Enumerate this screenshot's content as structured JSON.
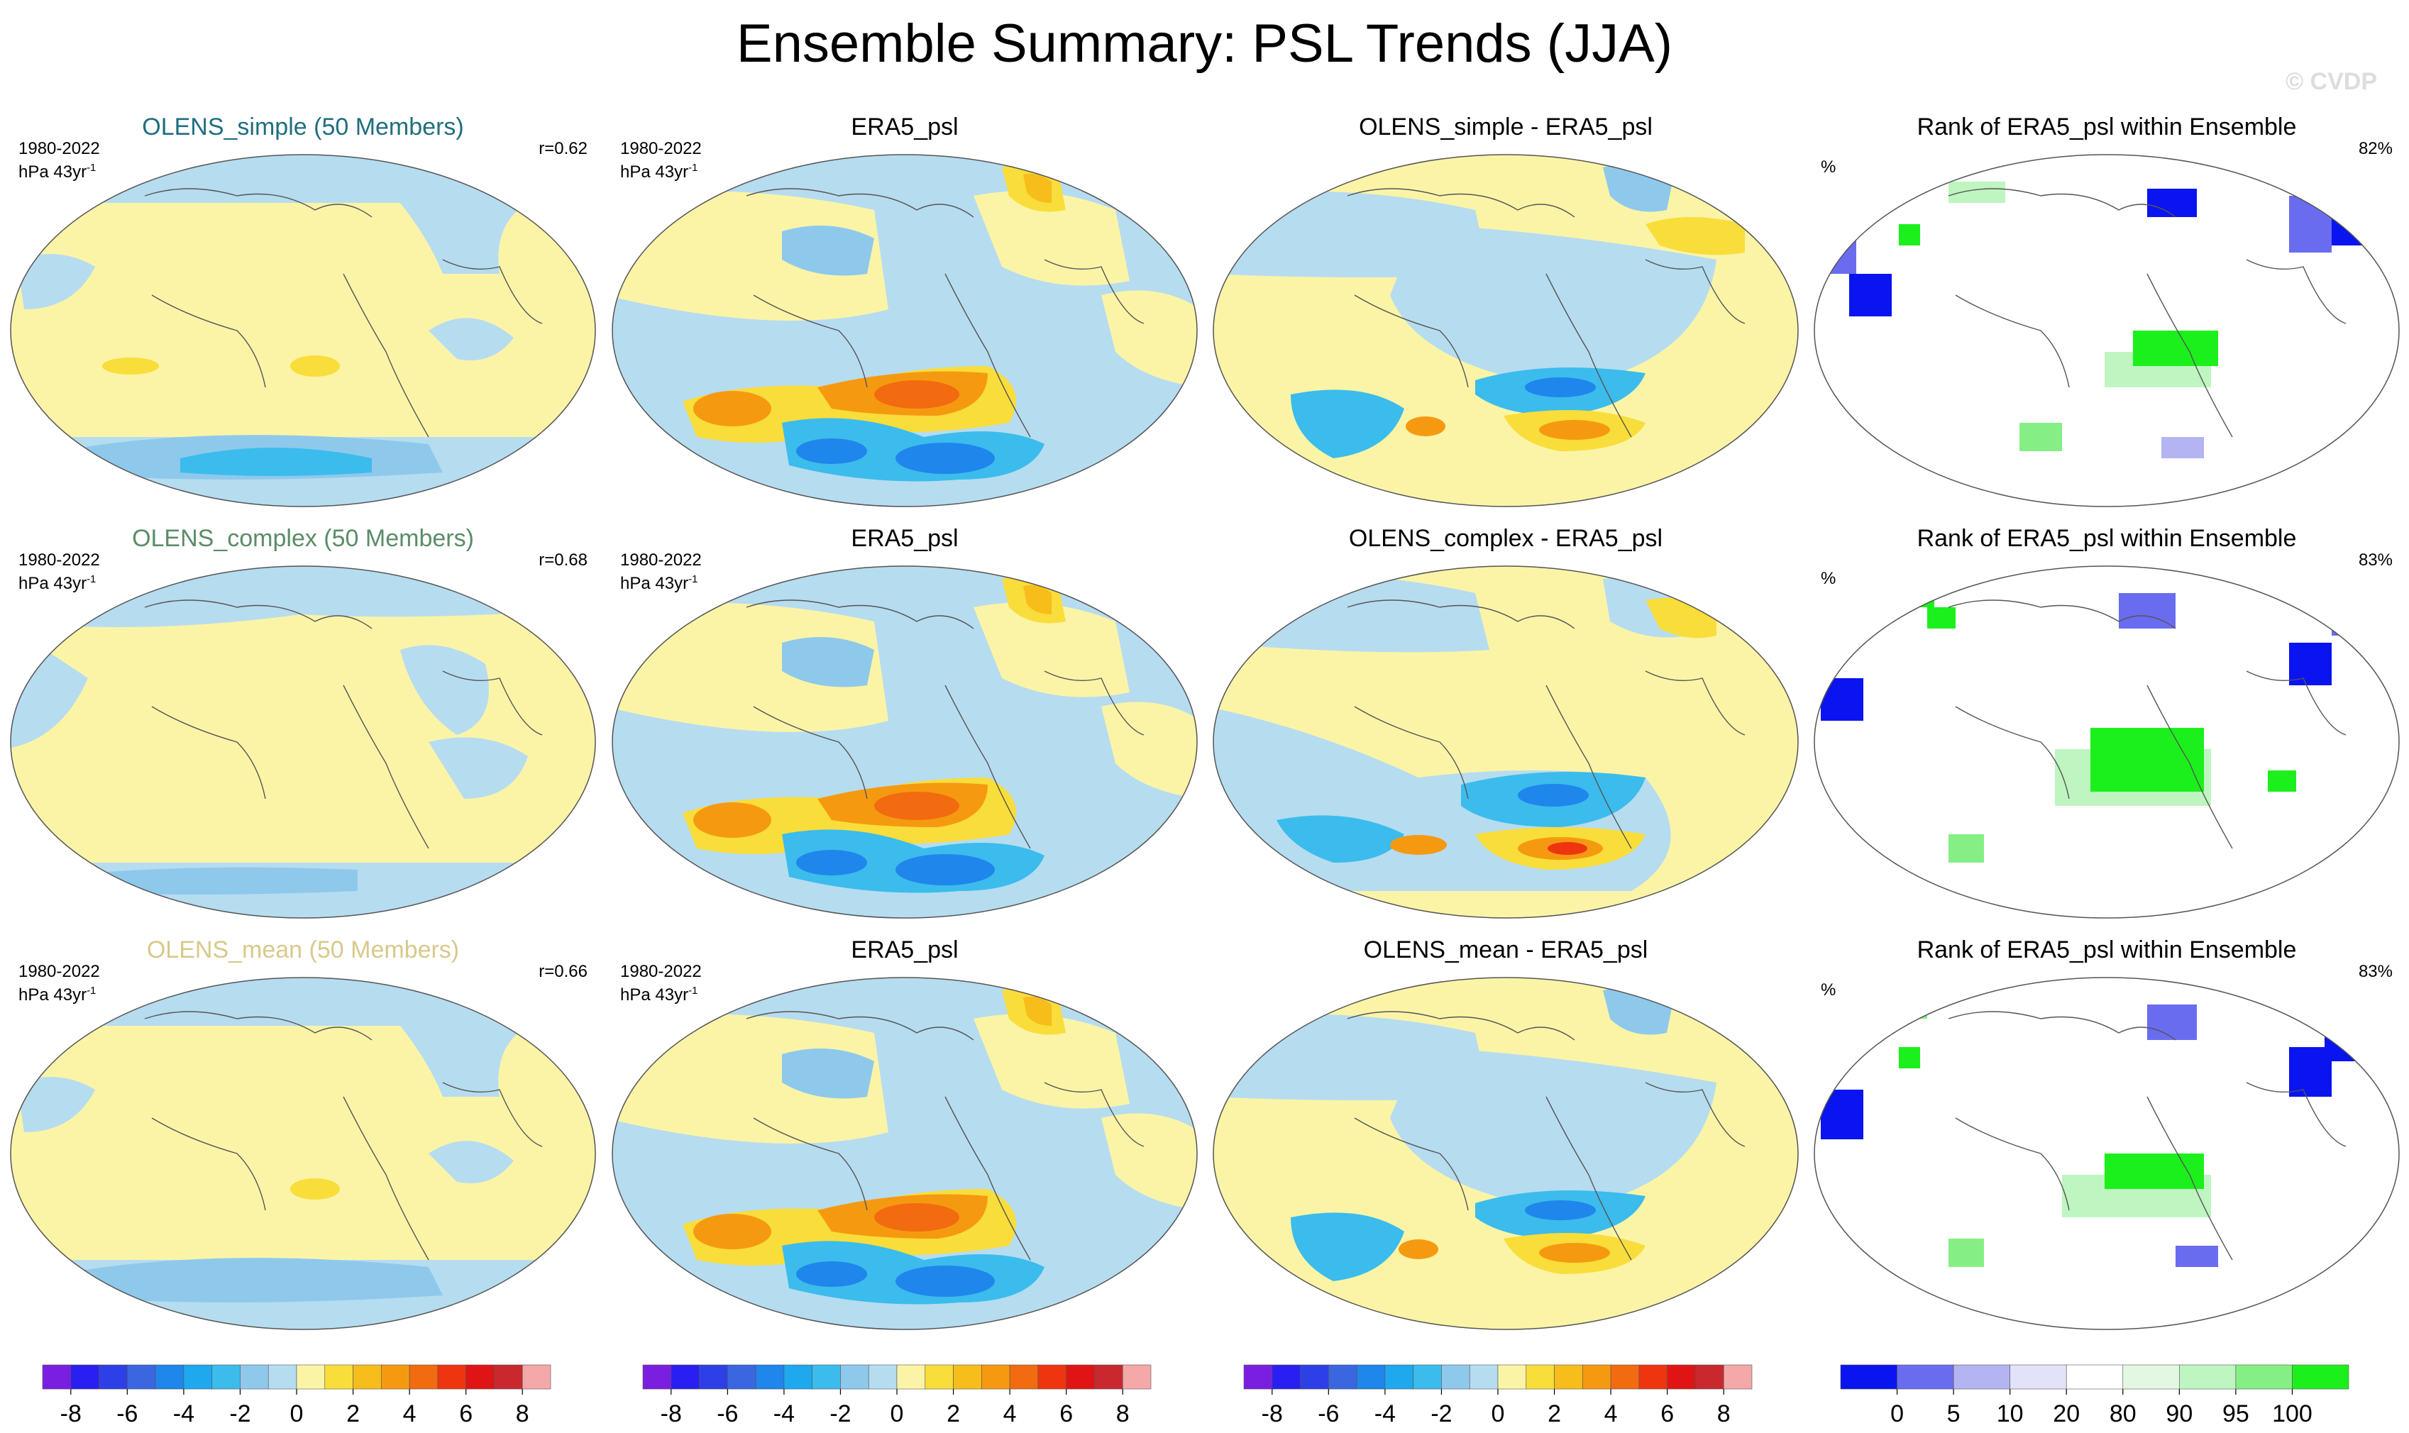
{
  "title": "Ensemble Summary: PSL Trends (JJA)",
  "copyright": "© CVDP",
  "period": "1980-2022",
  "units": "hPa 43yr",
  "units_exp": "-1",
  "pct_label": "%",
  "colors": {
    "land_yellow": "#fbf4a7",
    "ocean_blue": "#b6dcf0",
    "sim_title_simple": "#1f6e80",
    "sim_title_complex": "#5b8c68",
    "sim_title_mean": "#d8c98a"
  },
  "rows": [
    {
      "sim": {
        "title": "OLENS_simple (50 Members)",
        "r": "r=0.62"
      },
      "obs": {
        "title": "ERA5_psl"
      },
      "diff": {
        "title": "OLENS_simple - ERA5_psl"
      },
      "rank": {
        "title": "Rank of ERA5_psl within Ensemble",
        "pct": "82%"
      }
    },
    {
      "sim": {
        "title": "OLENS_complex (50 Members)",
        "r": "r=0.68"
      },
      "obs": {
        "title": "ERA5_psl"
      },
      "diff": {
        "title": "OLENS_complex - ERA5_psl"
      },
      "rank": {
        "title": "Rank of ERA5_psl within Ensemble",
        "pct": "83%"
      }
    },
    {
      "sim": {
        "title": "OLENS_mean (50 Members)",
        "r": "r=0.66"
      },
      "obs": {
        "title": "ERA5_psl"
      },
      "diff": {
        "title": "OLENS_mean - ERA5_psl"
      },
      "rank": {
        "title": "Rank of ERA5_psl within Ensemble",
        "pct": "83%"
      }
    }
  ],
  "chart_data": {
    "type": "heatmap",
    "title": "Ensemble Summary: PSL Trends (JJA)",
    "variable": "PSL trend",
    "season": "JJA",
    "period": "1980-2022",
    "units": "hPa 43yr-1",
    "trend_colorbar": {
      "levels": [
        -8,
        -7,
        -6,
        -5,
        -4,
        -3,
        -2,
        -1,
        0,
        1,
        2,
        3,
        4,
        5,
        6,
        7,
        8
      ],
      "tick_labels": [
        "-8",
        "-6",
        "-4",
        "-2",
        "0",
        "2",
        "4",
        "6",
        "8"
      ],
      "colors": [
        "#7a1fe0",
        "#2a1ff2",
        "#2d3fe6",
        "#3a66e0",
        "#1f86ec",
        "#1ea9ee",
        "#3bbcec",
        "#8ec9ec",
        "#b6dcf0",
        "#fbf4a7",
        "#f9dd3a",
        "#f7bd1a",
        "#f59a10",
        "#f26b10",
        "#ef3410",
        "#e01414",
        "#c9282f",
        "#f4a8a8"
      ]
    },
    "rank_colorbar": {
      "levels": [
        0,
        5,
        10,
        20,
        80,
        90,
        95,
        100
      ],
      "tick_labels": [
        "0",
        "5",
        "10",
        "20",
        "80",
        "90",
        "95",
        "100"
      ],
      "colors": [
        "#0a14f0",
        "#6a6cf0",
        "#b4b4f2",
        "#e2e2f8",
        "#ffffff",
        "#e2f8e2",
        "#bff5c0",
        "#85ef85",
        "#1cf01c"
      ]
    },
    "panels": [
      {
        "row": 1,
        "column": "simulation",
        "title": "OLENS_simple (50 Members)",
        "pattern_correlation": 0.62
      },
      {
        "row": 1,
        "column": "observation",
        "title": "ERA5_psl"
      },
      {
        "row": 1,
        "column": "difference",
        "title": "OLENS_simple - ERA5_psl"
      },
      {
        "row": 1,
        "column": "rank",
        "title": "Rank of ERA5_psl within Ensemble",
        "percent_within_10_90": 82
      },
      {
        "row": 2,
        "column": "simulation",
        "title": "OLENS_complex (50 Members)",
        "pattern_correlation": 0.68
      },
      {
        "row": 2,
        "column": "observation",
        "title": "ERA5_psl"
      },
      {
        "row": 2,
        "column": "difference",
        "title": "OLENS_complex - ERA5_psl"
      },
      {
        "row": 2,
        "column": "rank",
        "title": "Rank of ERA5_psl within Ensemble",
        "percent_within_10_90": 83
      },
      {
        "row": 3,
        "column": "simulation",
        "title": "OLENS_mean (50 Members)",
        "pattern_correlation": 0.66
      },
      {
        "row": 3,
        "column": "observation",
        "title": "ERA5_psl"
      },
      {
        "row": 3,
        "column": "difference",
        "title": "OLENS_mean - ERA5_psl"
      },
      {
        "row": 3,
        "column": "rank",
        "title": "Rank of ERA5_psl within Ensemble",
        "percent_within_10_90": 83
      }
    ]
  }
}
